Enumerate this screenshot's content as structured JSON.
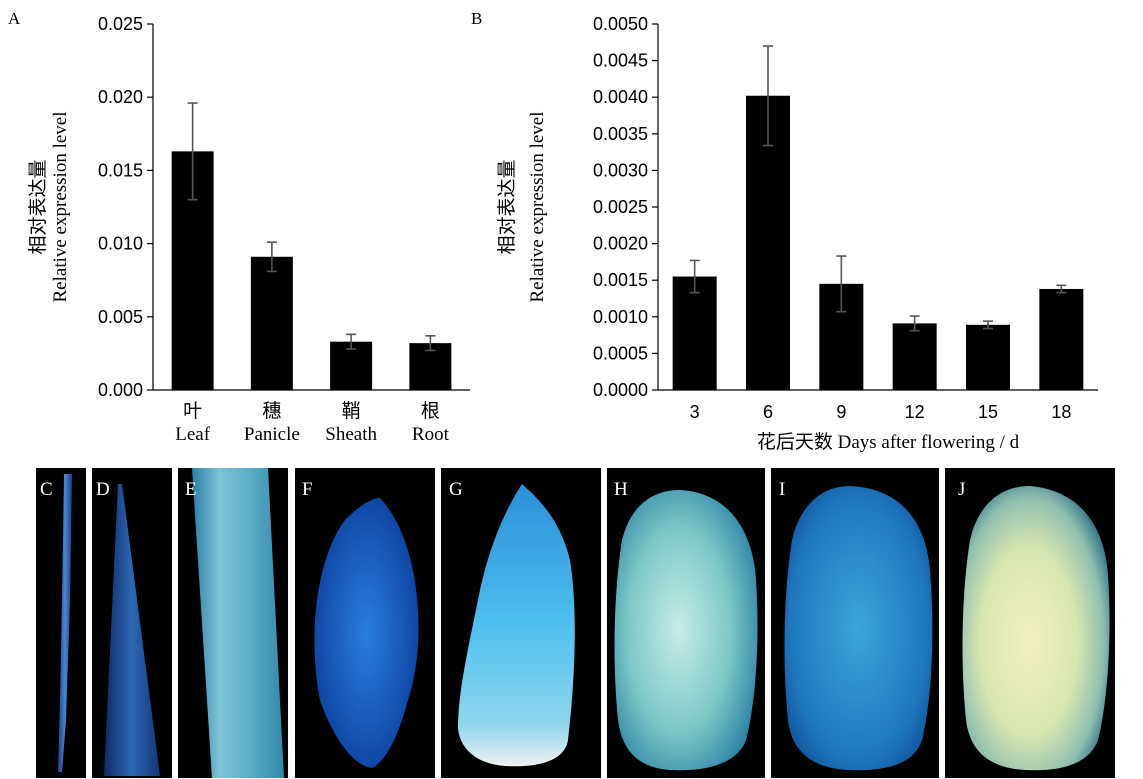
{
  "figure": {
    "panel_labels": [
      "A",
      "B"
    ],
    "photo_labels": [
      "C",
      "D",
      "E",
      "F",
      "G",
      "H",
      "I",
      "J"
    ]
  },
  "colors": {
    "bar": "#000000",
    "error_bar": "#555555",
    "photo_background": "#000000",
    "gus_blue": "#1e66c8"
  },
  "chart_data": [
    {
      "type": "bar",
      "panel": "A",
      "ylabel_zh": "相对表达量",
      "ylabel": "Relative expression level",
      "xlabel": "",
      "categories_zh": [
        "叶",
        "穗",
        "鞘",
        "根"
      ],
      "categories": [
        "Leaf",
        "Panicle",
        "Sheath",
        "Root"
      ],
      "values": [
        0.0163,
        0.0091,
        0.0033,
        0.0032
      ],
      "errors": [
        0.0033,
        0.001,
        0.0005,
        0.0005
      ],
      "ylim": [
        0,
        0.025
      ],
      "yticks": [
        "0.000",
        "0.005",
        "0.010",
        "0.015",
        "0.020",
        "0.025"
      ],
      "grid": false,
      "legend": "none"
    },
    {
      "type": "bar",
      "panel": "B",
      "ylabel_zh": "相对表达量",
      "ylabel": "Relative expression level",
      "xlabel": "花后天数 Days after flowering / d",
      "categories": [
        "3",
        "6",
        "9",
        "12",
        "15",
        "18"
      ],
      "values": [
        0.00155,
        0.00402,
        0.00145,
        0.00091,
        0.00089,
        0.00138
      ],
      "errors": [
        0.00022,
        0.00068,
        0.00038,
        0.0001,
        5e-05,
        5e-05
      ],
      "ylim": [
        0,
        0.005
      ],
      "yticks": [
        "0.0000",
        "0.0005",
        "0.0010",
        "0.0015",
        "0.0020",
        "0.0025",
        "0.0030",
        "0.0035",
        "0.0040",
        "0.0045",
        "0.0050"
      ],
      "grid": false,
      "legend": "none"
    }
  ]
}
